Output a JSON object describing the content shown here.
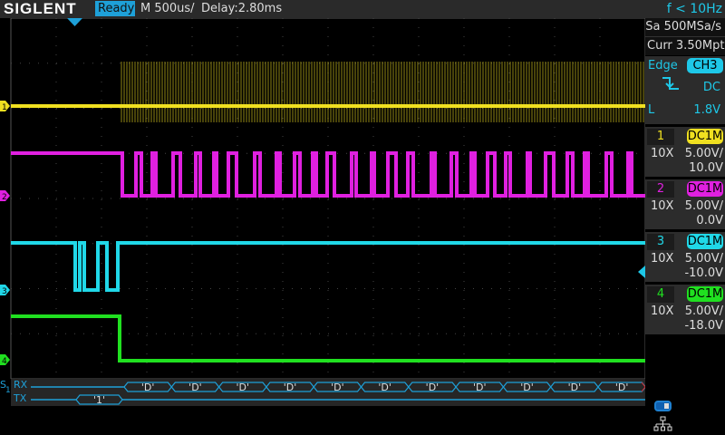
{
  "header": {
    "brand": "SIGLENT",
    "status": "Ready",
    "timebase": "M 500us/",
    "delay": "Delay:2.80ms",
    "frequency": "f < 10Hz"
  },
  "acquisition": {
    "sample_rate": "Sa 500MSa/s",
    "memory": "Curr 3.50Mpts"
  },
  "trigger": {
    "type": "Edge",
    "source": "CH3",
    "slope_icon": "falling-edge-icon",
    "coupling": "DC",
    "level_label": "L",
    "level": "1.8V"
  },
  "channels": [
    {
      "num": "1",
      "coupling": "DC1M",
      "probe": "10X",
      "scale": "5.00V/",
      "offset": "10.0V",
      "color": "#f0e020"
    },
    {
      "num": "2",
      "coupling": "DC1M",
      "probe": "10X",
      "scale": "5.00V/",
      "offset": "0.0V",
      "color": "#e020e0"
    },
    {
      "num": "3",
      "coupling": "DC1M",
      "probe": "10X",
      "scale": "5.00V/",
      "offset": "-10.0V",
      "color": "#20d8e8"
    },
    {
      "num": "4",
      "coupling": "DC1M",
      "probe": "10X",
      "scale": "5.00V/",
      "offset": "-18.0V",
      "color": "#20e020"
    }
  ],
  "decode": {
    "bus": "S1",
    "rx_label": "RX",
    "tx_label": "TX",
    "rx_packets": [
      "'D'",
      "'D'",
      "'D'",
      "'D'",
      "'D'",
      "'D'",
      "'D'",
      "'D'",
      "'D'",
      "'D'",
      "'D'"
    ],
    "tx_packets": [
      "'1'"
    ],
    "color": "#1ea0d8"
  },
  "status_icons": [
    "usb-icon",
    "network-icon"
  ]
}
